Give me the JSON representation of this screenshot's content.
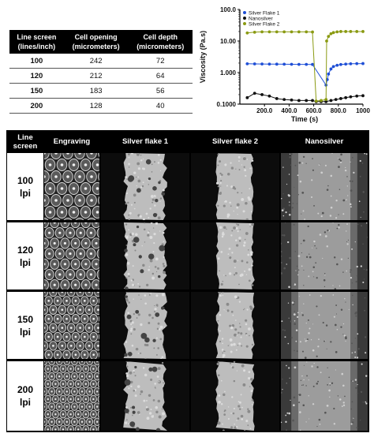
{
  "table": {
    "headers": [
      "Line screen\n(lines/inch)",
      "Cell opening\n(micrometers)",
      "Cell depth\n(micrometers)"
    ],
    "header_lines": [
      [
        "Line screen",
        "(lines/inch)"
      ],
      [
        "Cell opening",
        "(micrometers)"
      ],
      [
        "Cell depth",
        "(micrometers)"
      ]
    ],
    "rows": [
      [
        "100",
        "242",
        "72"
      ],
      [
        "120",
        "212",
        "64"
      ],
      [
        "150",
        "183",
        "56"
      ],
      [
        "200",
        "128",
        "40"
      ]
    ]
  },
  "chart_data": {
    "type": "scatter",
    "xlabel": "Time (s)",
    "ylabel": "Viscosity (Pa.s)",
    "xlim": [
      0,
      1000
    ],
    "ylim": [
      0.1,
      100
    ],
    "yscale": "log",
    "xticks": [
      200,
      400,
      600,
      800,
      1000
    ],
    "xtick_labels": [
      "200.0",
      "400.0",
      "600.0",
      "800.0",
      "1000"
    ],
    "yticks": [
      0.1,
      1,
      10,
      100
    ],
    "ytick_labels": [
      "0.1000",
      "1.000",
      "10.00",
      "100.0"
    ],
    "legend_position": "top-left",
    "series": [
      {
        "name": "Silver Flake 1",
        "color": "#1f4fd6",
        "x": [
          60,
          120,
          180,
          240,
          300,
          360,
          420,
          480,
          540,
          590,
          700,
          710,
          720,
          740,
          760,
          790,
          820,
          860,
          900,
          950,
          1000
        ],
        "y": [
          1.9,
          1.88,
          1.87,
          1.86,
          1.85,
          1.84,
          1.83,
          1.82,
          1.82,
          1.81,
          0.4,
          0.6,
          0.9,
          1.3,
          1.55,
          1.7,
          1.8,
          1.86,
          1.9,
          1.92,
          1.93
        ]
      },
      {
        "name": "Nanosilver",
        "color": "#111111",
        "x": [
          60,
          120,
          180,
          240,
          300,
          360,
          420,
          480,
          540,
          590,
          620,
          660,
          700,
          740,
          780,
          820,
          860,
          900,
          950,
          1000
        ],
        "y": [
          0.16,
          0.22,
          0.2,
          0.18,
          0.15,
          0.14,
          0.135,
          0.13,
          0.13,
          0.13,
          0.12,
          0.12,
          0.12,
          0.13,
          0.14,
          0.15,
          0.16,
          0.17,
          0.18,
          0.185
        ]
      },
      {
        "name": "Silver Flake 2",
        "color": "#8a9a12",
        "x": [
          60,
          120,
          180,
          240,
          300,
          360,
          420,
          480,
          540,
          590,
          620,
          660,
          700,
          705,
          720,
          740,
          760,
          790,
          820,
          860,
          900,
          950,
          1000
        ],
        "y": [
          18,
          19,
          19.5,
          19.5,
          19.5,
          19.5,
          19.5,
          19.5,
          19.5,
          19.3,
          0.125,
          0.13,
          0.14,
          10,
          14,
          17,
          18.5,
          19.5,
          20,
          20,
          20,
          20,
          20
        ]
      }
    ]
  },
  "grid": {
    "header_line1": "Line",
    "header_line2": "screen",
    "columns": [
      "Engraving",
      "Silver flake 1",
      "Silver flake 2",
      "Nanosilver"
    ],
    "rows": [
      {
        "num": "100",
        "unit": "lpi"
      },
      {
        "num": "120",
        "unit": "lpi"
      },
      {
        "num": "150",
        "unit": "lpi"
      },
      {
        "num": "200",
        "unit": "lpi"
      }
    ]
  }
}
